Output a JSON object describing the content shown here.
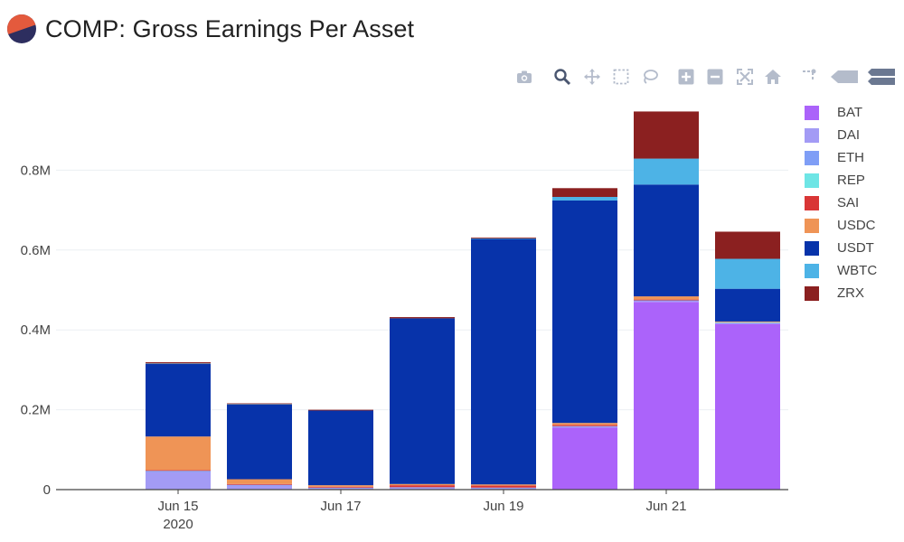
{
  "header": {
    "title": "COMP: Gross Earnings Per Asset"
  },
  "modebar": [
    {
      "name": "camera-icon"
    },
    {
      "name": "zoom-icon"
    },
    {
      "name": "pan-icon"
    },
    {
      "name": "box-select-icon"
    },
    {
      "name": "lasso-select-icon"
    },
    {
      "name": "zoom-in-icon"
    },
    {
      "name": "zoom-out-icon"
    },
    {
      "name": "autoscale-icon"
    },
    {
      "name": "home-icon"
    },
    {
      "name": "spike-lines-icon"
    },
    {
      "name": "hover-closest-icon"
    },
    {
      "name": "hover-compare-icon"
    }
  ],
  "chart_data": {
    "type": "bar",
    "barmode": "stack",
    "title": "COMP: Gross Earnings Per Asset",
    "xlabel": "",
    "ylabel": "",
    "x": [
      "Jun 15",
      "Jun 16",
      "Jun 17",
      "Jun 18",
      "Jun 19",
      "Jun 20",
      "Jun 21",
      "Jun 22"
    ],
    "xticks": [
      {
        "x": "Jun 15",
        "label": "Jun 15",
        "sublabel": "2020"
      },
      {
        "x": "Jun 17",
        "label": "Jun 17",
        "sublabel": ""
      },
      {
        "x": "Jun 19",
        "label": "Jun 19",
        "sublabel": ""
      },
      {
        "x": "Jun 21",
        "label": "Jun 21",
        "sublabel": ""
      }
    ],
    "yticks": [
      {
        "value": 0,
        "label": "0"
      },
      {
        "value": 200000,
        "label": "0.2M"
      },
      {
        "value": 400000,
        "label": "0.4M"
      },
      {
        "value": 600000,
        "label": "0.6M"
      },
      {
        "value": 800000,
        "label": "0.8M"
      }
    ],
    "ylim": [
      0,
      1000000
    ],
    "grid": true,
    "legend_position": "right",
    "series": [
      {
        "name": "BAT",
        "color": "#ab63fa",
        "values": [
          0,
          0,
          0,
          0,
          0,
          155000,
          470000,
          415000
        ]
      },
      {
        "name": "DAI",
        "color": "#a39bf5",
        "values": [
          44000,
          10000,
          4000,
          5000,
          4000,
          3000,
          3000,
          2000
        ]
      },
      {
        "name": "ETH",
        "color": "#7f9ef6",
        "values": [
          3000,
          2000,
          1000,
          1000,
          1000,
          1000,
          1000,
          1000
        ]
      },
      {
        "name": "REP",
        "color": "#6ee5e5",
        "values": [
          0,
          0,
          0,
          0,
          0,
          0,
          0,
          1000
        ]
      },
      {
        "name": "SAI",
        "color": "#d93636",
        "values": [
          2000,
          2000,
          2000,
          5000,
          5000,
          3000,
          2000,
          0
        ]
      },
      {
        "name": "USDC",
        "color": "#ef9456",
        "values": [
          84000,
          12000,
          4000,
          3000,
          3000,
          5000,
          8000,
          2000
        ]
      },
      {
        "name": "USDT",
        "color": "#0733aa",
        "values": [
          182000,
          187000,
          187000,
          415000,
          615000,
          557000,
          280000,
          82000
        ]
      },
      {
        "name": "WBTC",
        "color": "#4db3e6",
        "values": [
          1000,
          1000,
          0,
          0,
          1000,
          9000,
          65000,
          75000
        ]
      },
      {
        "name": "ZRX",
        "color": "#8b2020",
        "values": [
          3000,
          2000,
          2000,
          3000,
          2000,
          22000,
          118000,
          68000
        ]
      }
    ]
  }
}
